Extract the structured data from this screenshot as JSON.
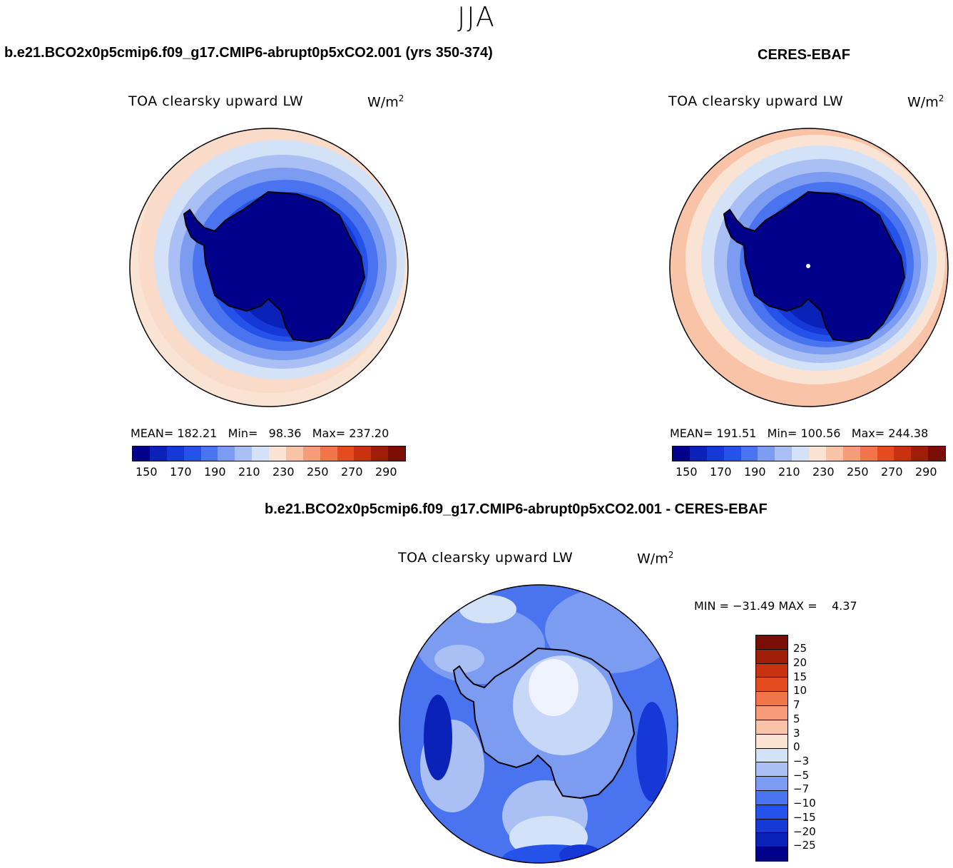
{
  "page_title": "JJA",
  "panels": [
    {
      "id": "model",
      "case_title": "b.e21.BCO2x0p5cmip6.f09_g17.CMIP6-abrupt0p5xCO2.001 (yrs 350-374)",
      "variable_label": "TOA clearsky upward LW",
      "units_base": "W/m",
      "units_exp": "2",
      "stats": {
        "mean_label": "MEAN=",
        "mean": "182.21",
        "min_label": "Min=",
        "min": "98.36",
        "max_label": "Max=",
        "max": "237.20"
      }
    },
    {
      "id": "obs",
      "case_title": "CERES-EBAF",
      "variable_label": "TOA clearsky upward LW",
      "units_base": "W/m",
      "units_exp": "2",
      "stats": {
        "mean_label": "MEAN=",
        "mean": "191.51",
        "min_label": "Min=",
        "min": "100.56",
        "max_label": "Max=",
        "max": "244.38"
      }
    },
    {
      "id": "diff",
      "case_title": "b.e21.BCO2x0p5cmip6.f09_g17.CMIP6-abrupt0p5xCO2.001 - CERES-EBAF",
      "variable_label": "TOA clearsky upward LW",
      "units_base": "W/m",
      "units_exp": "2",
      "stats": {
        "min_label": "MIN =",
        "min": "−31.49",
        "max_label": "MAX =",
        "max": "4.37"
      }
    }
  ],
  "abs_colorbar": {
    "colors": [
      "#00008b",
      "#0a22b8",
      "#1538d6",
      "#2552e8",
      "#4a74ef",
      "#7c9cf2",
      "#aac0f5",
      "#d4e2f8",
      "#fbe3d3",
      "#f9c3a8",
      "#f69c78",
      "#f2744a",
      "#e44c20",
      "#c83210",
      "#9e1e08",
      "#7a0d05"
    ],
    "ticks": [
      "150",
      "170",
      "190",
      "210",
      "230",
      "250",
      "270",
      "290"
    ]
  },
  "diff_colorbar": {
    "colors": [
      "#00008b",
      "#0a22b8",
      "#1538d6",
      "#2552e8",
      "#4a74ef",
      "#7c9cf2",
      "#aac0f5",
      "#d4e2f8",
      "#fbe3d3",
      "#f9c3a8",
      "#f69c78",
      "#f2744a",
      "#e44c20",
      "#c83210",
      "#9e1e08",
      "#7a0d05"
    ],
    "ticks": [
      "25",
      "20",
      "15",
      "10",
      "7",
      "5",
      "3",
      "0",
      "−3",
      "−5",
      "−7",
      "−10",
      "−15",
      "−20",
      "−25"
    ]
  }
}
